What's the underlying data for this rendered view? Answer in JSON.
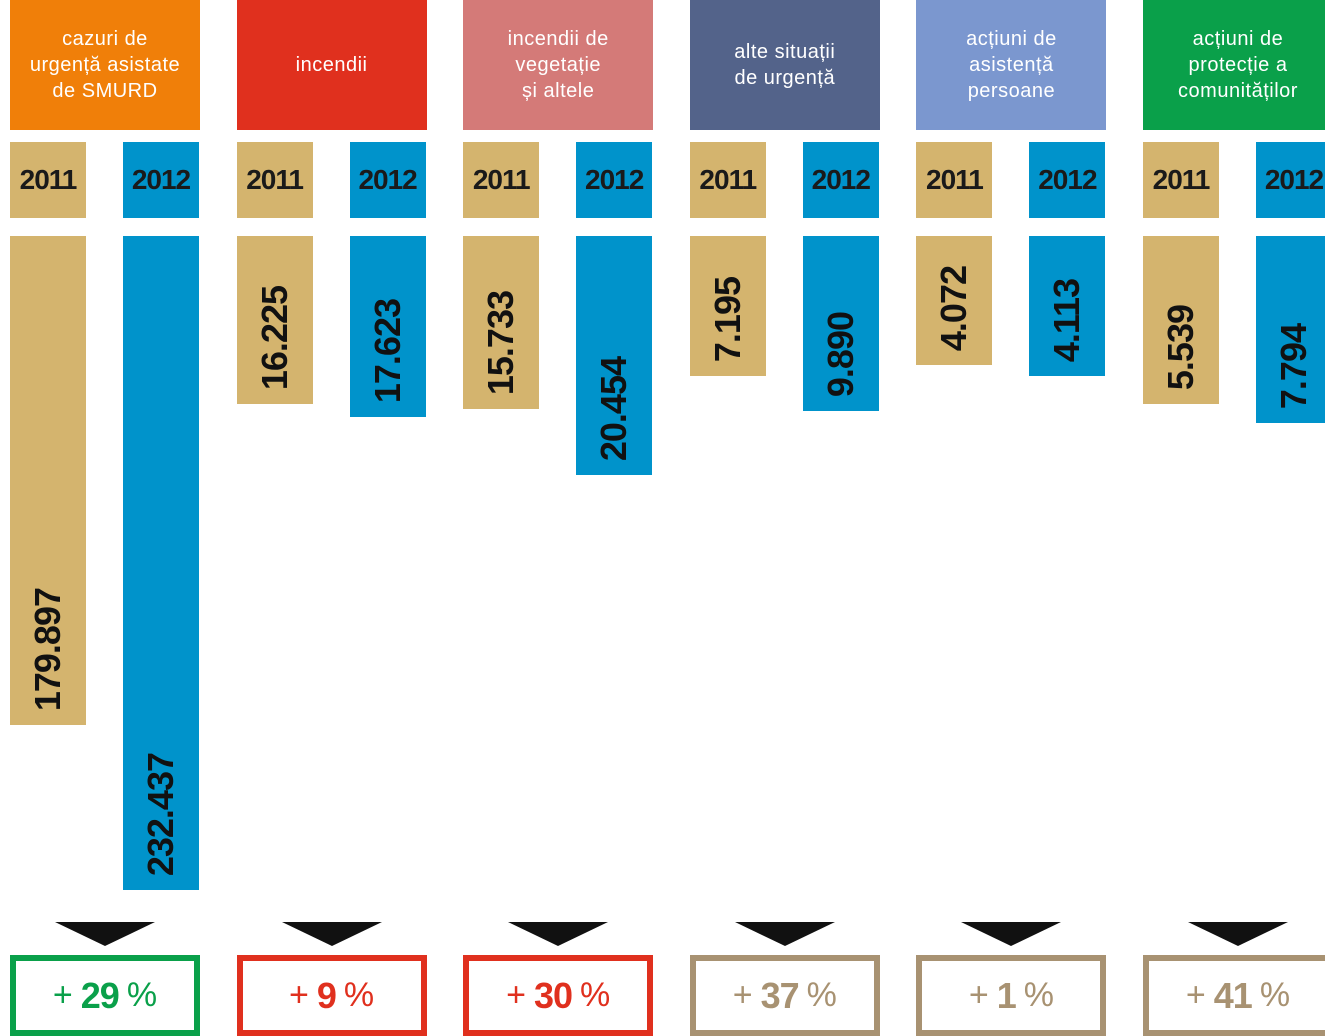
{
  "groups": [
    {
      "label": "cazuri de\nurgență asistate\nde SMURD",
      "years": [
        "2011",
        "2012"
      ],
      "values": [
        "179.897",
        "232.437"
      ],
      "change": "29"
    },
    {
      "label": "incendii",
      "years": [
        "2011",
        "2012"
      ],
      "values": [
        "16.225",
        "17.623"
      ],
      "change": "9"
    },
    {
      "label": "incendii de\nvegetație\nși altele",
      "years": [
        "2011",
        "2012"
      ],
      "values": [
        "15.733",
        "20.454"
      ],
      "change": "30"
    },
    {
      "label": "alte situații\nde urgență",
      "years": [
        "2011",
        "2012"
      ],
      "values": [
        "7.195",
        "9.890"
      ],
      "change": "37"
    },
    {
      "label": "acțiuni de\nasistență\npersoane",
      "years": [
        "2011",
        "2012"
      ],
      "values": [
        "4.072",
        "4.113"
      ],
      "change": "1"
    },
    {
      "label": "acțiuni de\nprotecție a\ncomunităților",
      "years": [
        "2011",
        "2012"
      ],
      "values": [
        "5.539",
        "7.794"
      ],
      "change": "41"
    }
  ],
  "change_prefix": "+",
  "change_unit": "%"
}
